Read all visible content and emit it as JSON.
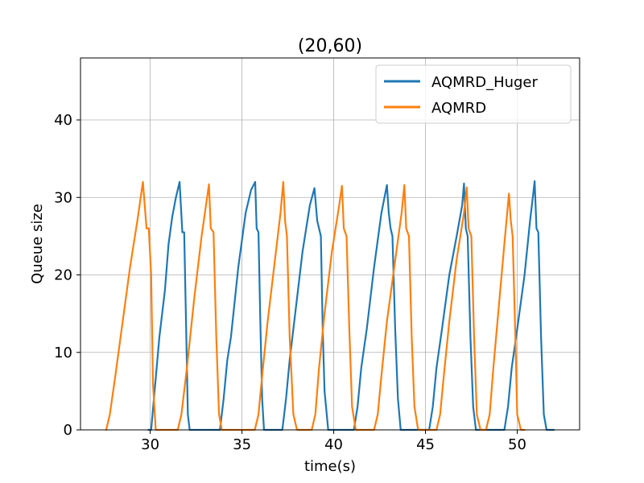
{
  "chart_data": {
    "type": "line",
    "title": "(20,60)",
    "xlabel": "time(s)",
    "ylabel": "Queue size",
    "xlim": [
      26.2,
      53.4
    ],
    "ylim": [
      0,
      48
    ],
    "xticks": [
      30,
      35,
      40,
      45,
      50
    ],
    "yticks": [
      0,
      10,
      20,
      30,
      40
    ],
    "grid": true,
    "legend_position": "top-right",
    "series": [
      {
        "name": "AQMRD_Huger",
        "color": "#1f77b4",
        "x": [
          29.9,
          30.05,
          30.2,
          30.5,
          30.8,
          31.0,
          31.2,
          31.4,
          31.6,
          31.75,
          31.85,
          31.95,
          32.05,
          32.15,
          32.3,
          33.8,
          34.0,
          34.2,
          34.4,
          34.8,
          35.2,
          35.5,
          35.72,
          35.8,
          35.9,
          36.0,
          36.1,
          36.2,
          36.3,
          37.2,
          37.4,
          37.6,
          37.9,
          38.3,
          38.7,
          38.95,
          39.1,
          39.3,
          39.4,
          39.5,
          39.7,
          39.85,
          40.0,
          41.1,
          41.3,
          41.5,
          41.8,
          42.2,
          42.6,
          42.9,
          43.0,
          43.1,
          43.2,
          43.35,
          43.5,
          43.65,
          43.8,
          45.2,
          45.4,
          45.6,
          45.9,
          46.3,
          46.7,
          47.0,
          47.1,
          47.2,
          47.3,
          47.45,
          47.6,
          47.75,
          47.9,
          49.3,
          49.5,
          49.7,
          50.0,
          50.4,
          50.7,
          50.85,
          50.95,
          51.05,
          51.15,
          51.3,
          51.45,
          51.6,
          52.0
        ],
        "y": [
          0,
          0,
          4,
          12,
          18,
          24,
          27.5,
          30,
          32,
          25.5,
          25.5,
          14,
          2,
          0,
          0,
          0,
          4,
          9,
          12,
          21,
          28,
          31,
          32,
          26,
          25.5,
          14,
          4,
          0,
          0,
          0,
          4,
          9,
          15,
          23,
          29,
          31.2,
          27,
          25,
          13,
          5,
          0,
          0,
          0,
          0,
          3,
          8,
          13,
          21,
          28,
          31.6,
          28,
          26,
          25,
          13,
          4,
          0,
          0,
          0,
          3,
          8,
          13,
          20,
          25,
          29,
          31.8,
          26,
          25,
          12,
          3,
          0,
          0,
          0,
          3,
          8,
          13,
          20,
          27,
          30,
          32.1,
          26,
          25.5,
          12,
          2,
          0,
          0
        ]
      },
      {
        "name": "AQMRD",
        "color": "#ff7f0e",
        "x": [
          27.6,
          27.8,
          28.1,
          28.5,
          28.9,
          29.3,
          29.6,
          29.7,
          29.8,
          29.92,
          30.05,
          30.15,
          30.3,
          30.5,
          31.5,
          31.7,
          32.0,
          32.4,
          32.8,
          33.1,
          33.2,
          33.3,
          33.45,
          33.6,
          33.75,
          33.9,
          35.7,
          35.9,
          36.1,
          36.4,
          36.8,
          37.1,
          37.25,
          37.35,
          37.45,
          37.6,
          37.8,
          38.0,
          38.8,
          39.0,
          39.2,
          39.5,
          39.9,
          40.3,
          40.45,
          40.55,
          40.7,
          40.85,
          41.0,
          41.2,
          42.2,
          42.4,
          42.6,
          42.9,
          43.3,
          43.7,
          43.85,
          43.95,
          44.1,
          44.25,
          44.4,
          44.6,
          45.6,
          45.8,
          46.0,
          46.3,
          46.7,
          47.1,
          47.25,
          47.35,
          47.5,
          47.65,
          47.8,
          48.0,
          48.3,
          48.5,
          48.7,
          49.0,
          49.3,
          49.55,
          49.65,
          49.75,
          49.9,
          50.0,
          50.2,
          50.4
        ],
        "y": [
          0,
          2,
          7,
          14,
          21,
          27,
          32,
          29,
          26,
          26,
          20,
          6,
          0,
          0,
          0,
          2,
          8,
          17,
          25,
          30,
          31.7,
          26,
          25.5,
          12,
          2,
          0,
          0,
          2,
          7,
          14,
          22,
          28,
          32,
          27,
          25,
          12,
          2,
          0,
          0,
          2,
          8,
          15,
          23,
          29,
          31.5,
          26,
          25,
          13,
          3,
          0,
          0,
          2,
          7,
          14,
          21,
          28,
          31.6,
          26,
          25,
          12,
          3,
          0,
          0,
          2,
          7,
          14,
          22,
          28,
          31.3,
          26,
          25,
          12,
          2,
          0,
          0,
          2,
          8,
          16,
          24,
          30.5,
          27,
          25,
          12,
          2,
          0,
          0
        ]
      }
    ]
  }
}
